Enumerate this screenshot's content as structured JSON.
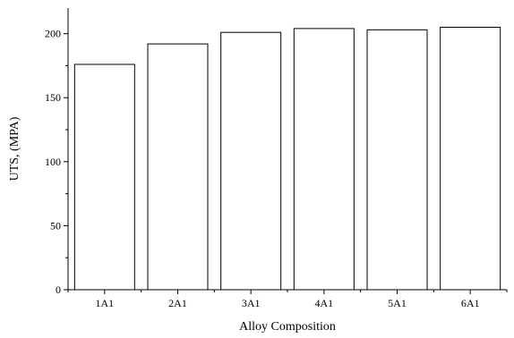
{
  "chart_data": {
    "type": "bar",
    "categories": [
      "1A1",
      "2A1",
      "3A1",
      "4A1",
      "5A1",
      "6A1"
    ],
    "values": [
      176,
      192,
      201,
      204,
      203,
      205
    ],
    "title": "",
    "xlabel": "Alloy Composition",
    "ylabel": "UTS, (MPA)",
    "ylim": [
      0,
      220
    ],
    "yticks": [
      0,
      50,
      100,
      150,
      200
    ],
    "grid": false,
    "colors": {
      "bar_fill": "#ffffff",
      "bar_stroke": "#000000"
    }
  }
}
